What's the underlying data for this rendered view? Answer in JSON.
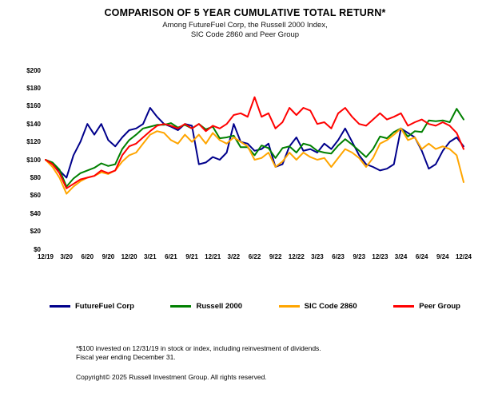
{
  "chart_data": {
    "type": "line",
    "title": "COMPARISON OF 5 YEAR CUMULATIVE TOTAL RETURN*",
    "subtitle_line1": "Among FutureFuel Corp, the Russell 2000 Index,",
    "subtitle_line2": "SIC Code 2860 and Peer Group",
    "x_frequency": "monthly",
    "x_tick_labels": [
      "12/19",
      "3/20",
      "6/20",
      "9/20",
      "12/20",
      "3/21",
      "6/21",
      "9/21",
      "12/21",
      "3/22",
      "6/22",
      "9/22",
      "12/22",
      "3/23",
      "6/23",
      "9/23",
      "12/23",
      "3/24",
      "6/24",
      "9/24",
      "12/24"
    ],
    "y_tick_labels": [
      "$0",
      "$20",
      "$40",
      "$60",
      "$80",
      "$100",
      "$120",
      "$140",
      "$160",
      "$180",
      "$200"
    ],
    "ylim": [
      0,
      200
    ],
    "y_tick_step": 20,
    "grid": false,
    "legend_position": "bottom",
    "series": [
      {
        "name": "FutureFuel Corp",
        "color": "#00008B",
        "values": [
          100,
          95,
          88,
          80,
          105,
          120,
          140,
          128,
          140,
          122,
          115,
          125,
          133,
          135,
          140,
          158,
          148,
          140,
          137,
          133,
          140,
          138,
          95,
          97,
          103,
          100,
          108,
          140,
          120,
          118,
          110,
          112,
          118,
          92,
          95,
          115,
          125,
          110,
          112,
          108,
          118,
          112,
          122,
          135,
          120,
          105,
          95,
          92,
          88,
          90,
          95,
          135,
          130,
          125,
          110,
          90,
          95,
          110,
          120,
          125,
          115
        ]
      },
      {
        "name": "Russell 2000",
        "color": "#008000",
        "values": [
          100,
          97,
          89,
          70,
          79,
          85,
          88,
          91,
          96,
          93,
          95,
          112,
          122,
          128,
          135,
          137,
          139,
          139,
          141,
          136,
          139,
          135,
          140,
          134,
          137,
          124,
          125,
          127,
          114,
          114,
          105,
          116,
          113,
          102,
          113,
          115,
          108,
          118,
          116,
          110,
          108,
          107,
          116,
          123,
          117,
          110,
          103,
          112,
          126,
          124,
          131,
          135,
          126,
          132,
          131,
          144,
          143,
          144,
          142,
          157,
          145
        ]
      },
      {
        "name": "SIC Code 2860",
        "color": "#FFA500",
        "values": [
          100,
          92,
          80,
          62,
          70,
          76,
          80,
          82,
          86,
          84,
          88,
          98,
          105,
          108,
          118,
          128,
          132,
          130,
          122,
          118,
          128,
          120,
          128,
          118,
          130,
          122,
          118,
          125,
          120,
          115,
          100,
          102,
          108,
          92,
          98,
          108,
          100,
          108,
          103,
          100,
          102,
          92,
          102,
          112,
          108,
          102,
          92,
          102,
          118,
          122,
          128,
          135,
          122,
          125,
          112,
          118,
          112,
          115,
          112,
          105,
          75
        ]
      },
      {
        "name": "Peer Group",
        "color": "#FF0000",
        "values": [
          100,
          95,
          85,
          68,
          73,
          78,
          80,
          82,
          88,
          85,
          88,
          105,
          115,
          118,
          125,
          132,
          138,
          140,
          138,
          135,
          140,
          135,
          140,
          132,
          138,
          135,
          140,
          150,
          152,
          148,
          170,
          148,
          152,
          135,
          142,
          158,
          150,
          158,
          155,
          140,
          142,
          135,
          152,
          158,
          148,
          140,
          138,
          145,
          152,
          145,
          148,
          152,
          138,
          142,
          145,
          140,
          138,
          142,
          138,
          130,
          112
        ]
      }
    ]
  },
  "footnotes": {
    "line1": "*$100 invested on 12/31/19 in stock or index, including reinvestment of dividends.",
    "line2": "Fiscal year ending December 31.",
    "copyright": "Copyright© 2025 Russell Investment Group. All rights reserved."
  }
}
